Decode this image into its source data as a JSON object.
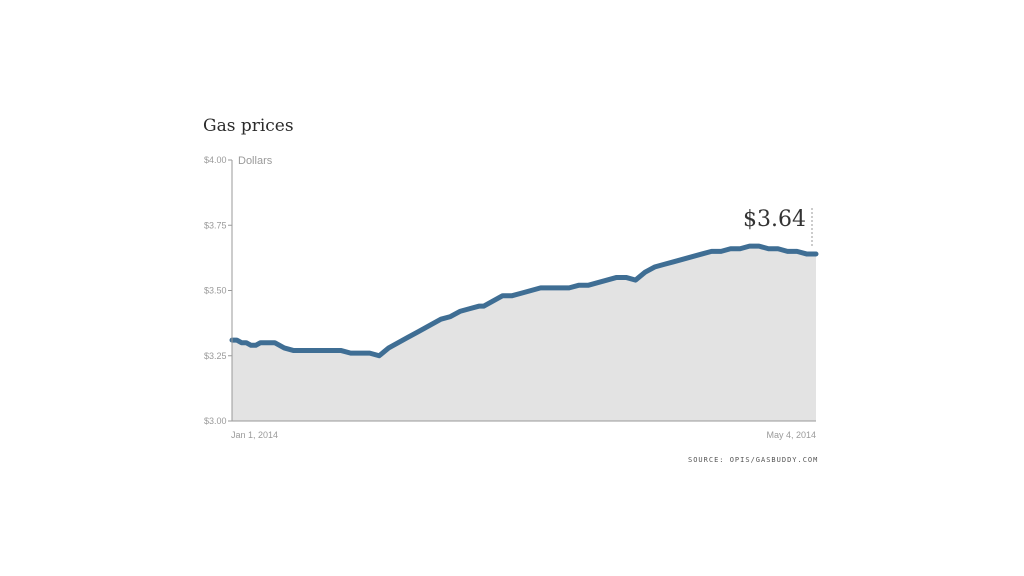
{
  "title": "Gas prices",
  "source": "SOURCE: OPIS/GASBUDDY.COM",
  "callout": "$3.64",
  "colors": {
    "line": "#3f6e94",
    "area": "#e3e3e3",
    "axis": "#9a9a9a"
  },
  "chart_data": {
    "type": "area",
    "title": "Gas prices",
    "ylabel": "Dollars",
    "xlabel": "",
    "ylim": [
      3.0,
      4.0
    ],
    "yticks": [
      {
        "value": 4.0,
        "label": "$4.00"
      },
      {
        "value": 3.75,
        "label": "$3.75"
      },
      {
        "value": 3.5,
        "label": "$3.50"
      },
      {
        "value": 3.25,
        "label": "$3.25"
      },
      {
        "value": 3.0,
        "label": "$3.00"
      }
    ],
    "xlim": [
      "2014-01-01",
      "2014-05-04"
    ],
    "xtick_labels": {
      "start": "Jan 1, 2014",
      "end": "May 4, 2014"
    },
    "callout_label": "$3.64",
    "grid": false,
    "series": [
      {
        "x": [
          "2014-01-01",
          "2014-01-02",
          "2014-01-03",
          "2014-01-04",
          "2014-01-05",
          "2014-01-06",
          "2014-01-07",
          "2014-01-08",
          "2014-01-10",
          "2014-01-12",
          "2014-01-14",
          "2014-01-16",
          "2014-01-18",
          "2014-01-19",
          "2014-01-21",
          "2014-01-22",
          "2014-01-24",
          "2014-01-26",
          "2014-01-28",
          "2014-01-30",
          "2014-02-01",
          "2014-02-03",
          "2014-02-05",
          "2014-02-07",
          "2014-02-09",
          "2014-02-11",
          "2014-02-12",
          "2014-02-13",
          "2014-02-14",
          "2014-02-16",
          "2014-02-18",
          "2014-02-20",
          "2014-02-22",
          "2014-02-23",
          "2014-02-25",
          "2014-02-27",
          "2014-03-01",
          "2014-03-03",
          "2014-03-05",
          "2014-03-07",
          "2014-03-09",
          "2014-03-11",
          "2014-03-13",
          "2014-03-15",
          "2014-03-17",
          "2014-03-19",
          "2014-03-21",
          "2014-03-23",
          "2014-03-25",
          "2014-03-27",
          "2014-03-29",
          "2014-03-31",
          "2014-04-02",
          "2014-04-04",
          "2014-04-06",
          "2014-04-08",
          "2014-04-10",
          "2014-04-12",
          "2014-04-14",
          "2014-04-16",
          "2014-04-18",
          "2014-04-20",
          "2014-04-22",
          "2014-04-24",
          "2014-04-26",
          "2014-04-28",
          "2014-04-30",
          "2014-05-02",
          "2014-05-04"
        ],
        "values": [
          3.31,
          3.31,
          3.3,
          3.3,
          3.29,
          3.29,
          3.3,
          3.3,
          3.3,
          3.28,
          3.27,
          3.27,
          3.27,
          3.27,
          3.27,
          3.27,
          3.27,
          3.26,
          3.26,
          3.26,
          3.25,
          3.28,
          3.3,
          3.32,
          3.34,
          3.36,
          3.37,
          3.38,
          3.39,
          3.4,
          3.42,
          3.43,
          3.44,
          3.44,
          3.46,
          3.48,
          3.48,
          3.49,
          3.5,
          3.51,
          3.51,
          3.51,
          3.51,
          3.52,
          3.52,
          3.53,
          3.54,
          3.55,
          3.55,
          3.54,
          3.57,
          3.59,
          3.6,
          3.61,
          3.62,
          3.63,
          3.64,
          3.65,
          3.65,
          3.66,
          3.66,
          3.67,
          3.67,
          3.66,
          3.66,
          3.65,
          3.65,
          3.64,
          3.64
        ]
      }
    ]
  }
}
